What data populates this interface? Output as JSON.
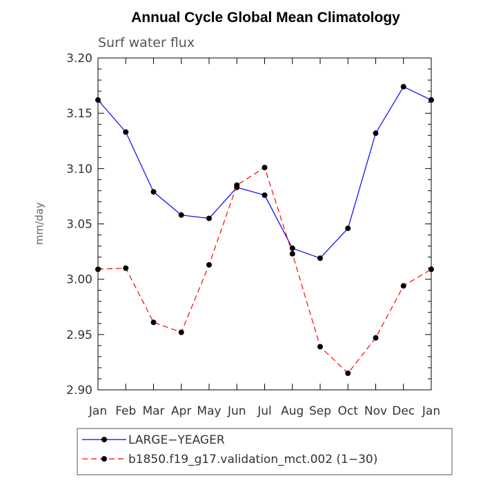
{
  "chart_data": {
    "type": "line",
    "title": "Annual Cycle Global Mean Climatology",
    "subtitle": "Surf water flux",
    "xlabel": "",
    "ylabel": "mm/day",
    "categories": [
      "Jan",
      "Feb",
      "Mar",
      "Apr",
      "May",
      "Jun",
      "Jul",
      "Aug",
      "Sep",
      "Oct",
      "Nov",
      "Dec",
      "Jan"
    ],
    "ylim": [
      2.9,
      3.2
    ],
    "y_major_ticks": [
      "3.20",
      "3.15",
      "3.10",
      "3.05",
      "3.00",
      "2.95",
      "2.90"
    ],
    "legend_position": "bottom",
    "series": [
      {
        "name": "LARGE−YEAGER",
        "color": "#0000ff",
        "line_style": "solid",
        "values": [
          3.162,
          3.133,
          3.079,
          3.058,
          3.055,
          3.083,
          3.076,
          3.028,
          3.019,
          3.046,
          3.132,
          3.174,
          3.162
        ]
      },
      {
        "name": "b1850.f19_g17.validation_mct.002 (1−30)",
        "color": "#ff0000",
        "line_style": "dashed",
        "values": [
          3.009,
          3.01,
          2.961,
          2.952,
          3.013,
          3.085,
          3.101,
          3.023,
          2.939,
          2.915,
          2.947,
          2.994,
          3.009
        ]
      }
    ]
  }
}
